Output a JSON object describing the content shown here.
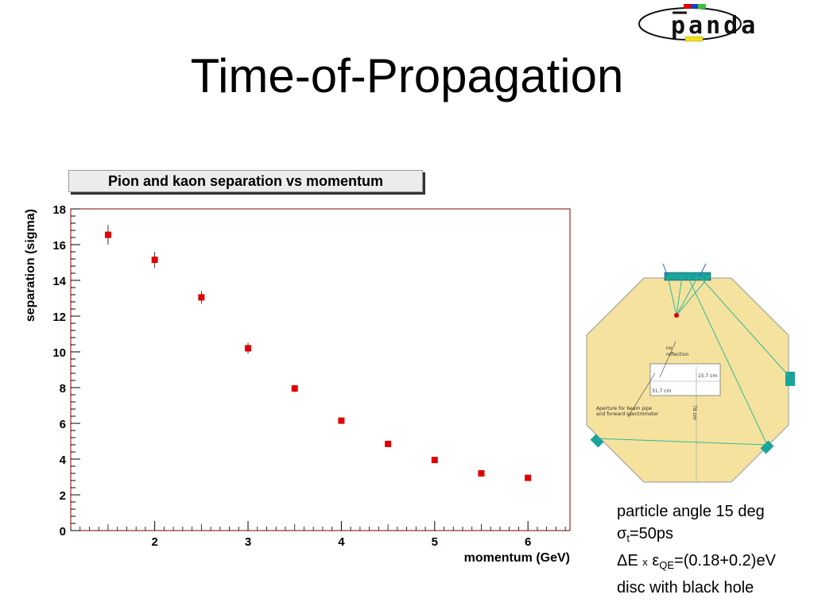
{
  "slide": {
    "title": "Time-of-Propagation"
  },
  "logo": {
    "text": "panda",
    "icon": "panda-logo",
    "colors": {
      "red": "#e00000",
      "blue": "#1a3fd0",
      "green": "#39c23a",
      "yellow": "#f2e600",
      "dark": "#111111"
    }
  },
  "chart_data": {
    "type": "scatter",
    "title": "Pion and kaon separation vs momentum",
    "xlabel": "momentum (GeV)",
    "ylabel": "separation (sigma)",
    "xlim": [
      1.1,
      6.45
    ],
    "ylim": [
      0,
      18
    ],
    "xticks": [
      2,
      3,
      4,
      5,
      6
    ],
    "yticks": [
      0,
      2,
      4,
      6,
      8,
      10,
      12,
      14,
      16,
      18
    ],
    "grid": false,
    "marker_color": "#e00000",
    "frame_color": "#800000",
    "x": [
      1.5,
      2.0,
      2.5,
      3.0,
      3.5,
      4.0,
      4.5,
      5.0,
      5.5,
      6.0
    ],
    "y": [
      16.55,
      15.15,
      13.05,
      10.2,
      7.95,
      6.15,
      4.85,
      3.95,
      3.2,
      2.95
    ],
    "y_err": [
      0.55,
      0.45,
      0.35,
      0.3,
      0.2,
      0.15,
      0.1,
      0.1,
      0.08,
      0.08
    ]
  },
  "detector": {
    "icon": "detector-geometry-diagram",
    "fill": "#f5e29e",
    "annotations": {
      "no_reflection_1": "no",
      "no_reflection_2": "reflection",
      "dim_height": "15.7 cm",
      "dim_width": "31.7 cm",
      "aperture_1": "Aperture for beam pipe",
      "aperture_2": "and forward spectrometer",
      "dim_vertical": "78 cm"
    }
  },
  "notes": {
    "line1": "particle angle 15 deg",
    "sigma_symbol": "σ",
    "sigma_sub": "t",
    "sigma_value": "=50ps",
    "delta_e": "ΔE",
    "times": "x",
    "epsilon": "ε",
    "epsilon_sub": "QE",
    "formula": "=(0.18+0.2)eV",
    "line4": "disc with black hole"
  }
}
